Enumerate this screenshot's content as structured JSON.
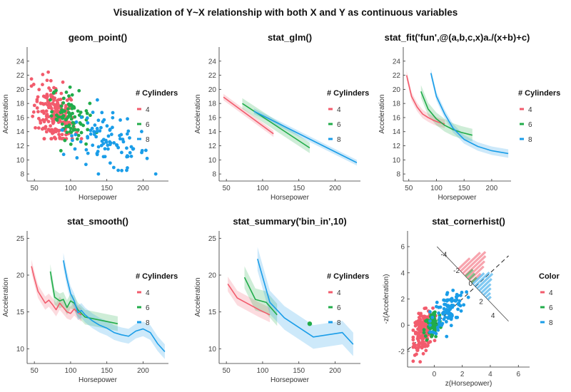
{
  "figure": {
    "title": "Visualization of Y~X relationship with both X and Y as continuous variables"
  },
  "colors": {
    "g4": "#f25b6c",
    "g6": "#21ac4a",
    "g8": "#1a9de8",
    "axis": "#333333",
    "tick": "#444444"
  },
  "chart_data": [
    {
      "id": "p1",
      "type": "scatter",
      "title": "geom_point()",
      "xlabel": "Horsepower",
      "ylabel": "Acceleration",
      "xticks": [
        50,
        100,
        150,
        200
      ],
      "yticks": [
        8,
        10,
        12,
        14,
        16,
        18,
        20,
        22,
        24
      ],
      "xlim": [
        40,
        235
      ],
      "ylim": [
        7,
        26
      ],
      "legend": {
        "title": "# Cylinders",
        "entries": [
          "4",
          "6",
          "8"
        ],
        "position": "right"
      },
      "clusters": [
        {
          "group": "4",
          "x_range": [
            46,
            115
          ],
          "y_range": [
            13,
            24.8
          ],
          "center": [
            78,
            16.5
          ],
          "spread": [
            14,
            2.2
          ],
          "count": 200
        },
        {
          "group": "6",
          "x_range": [
            72,
            165
          ],
          "y_range": [
            11.3,
            21
          ],
          "center": [
            100,
            16.2
          ],
          "spread": [
            13,
            1.8
          ],
          "count": 85
        },
        {
          "group": "8",
          "x_range": [
            88,
            230
          ],
          "y_range": [
            8,
            18.5
          ],
          "center": [
            150,
            12.5
          ],
          "spread": [
            30,
            1.9
          ],
          "count": 100
        }
      ]
    },
    {
      "id": "p2",
      "type": "line",
      "title": "stat_glm()",
      "xlabel": "Horsepower",
      "ylabel": "Acceleration",
      "xticks": [
        50,
        100,
        150,
        200
      ],
      "yticks": [
        8,
        10,
        12,
        14,
        16,
        18,
        20,
        22,
        24
      ],
      "xlim": [
        40,
        235
      ],
      "ylim": [
        7,
        26
      ],
      "legend": {
        "title": "# Cylinders",
        "entries": [
          "4",
          "6",
          "8"
        ],
        "position": "right"
      },
      "series": [
        {
          "name": "4",
          "x": [
            46,
            115
          ],
          "y": [
            18.9,
            13.7
          ],
          "band": 0.45
        },
        {
          "name": "6",
          "x": [
            72,
            165
          ],
          "y": [
            18.0,
            11.7
          ],
          "band": 0.75
        },
        {
          "name": "8",
          "x": [
            88,
            230
          ],
          "y": [
            16.9,
            9.6
          ],
          "band": 0.4
        }
      ]
    },
    {
      "id": "p3",
      "type": "line",
      "title": "stat_fit('fun',@(a,b,c,x)a./(x+b)+c)",
      "xlabel": "Horsepower",
      "ylabel": "Acceleration",
      "xticks": [
        50,
        100,
        150,
        200
      ],
      "yticks": [
        8,
        10,
        12,
        14,
        16,
        18,
        20,
        22,
        24
      ],
      "xlim": [
        40,
        235
      ],
      "ylim": [
        7,
        26
      ],
      "legend": {
        "title": "# Cylinders",
        "entries": [
          "4",
          "6",
          "8"
        ],
        "position": "right"
      },
      "series": [
        {
          "name": "4",
          "x": [
            46,
            55,
            65,
            75,
            85,
            95,
            105,
            115
          ],
          "y": [
            22.0,
            19.0,
            17.5,
            16.5,
            16.0,
            15.6,
            15.3,
            15.1
          ],
          "band": 0.6
        },
        {
          "name": "6",
          "x": [
            72,
            85,
            100,
            115,
            130,
            145,
            165
          ],
          "y": [
            19.7,
            17.2,
            15.8,
            14.9,
            14.3,
            13.9,
            13.5
          ],
          "band": 0.9
        },
        {
          "name": "8",
          "x": [
            90,
            100,
            115,
            130,
            150,
            175,
            200,
            230
          ],
          "y": [
            22.3,
            19.0,
            16.5,
            14.5,
            12.9,
            11.9,
            11.3,
            10.9
          ],
          "band": 0.6
        }
      ]
    },
    {
      "id": "p4",
      "type": "line",
      "title": "stat_smooth()",
      "xlabel": "Horsepower",
      "ylabel": "Acceleration",
      "xticks": [
        50,
        100,
        150,
        200
      ],
      "yticks": [
        10,
        15,
        20,
        25
      ],
      "xlim": [
        40,
        235
      ],
      "ylim": [
        8,
        26
      ],
      "legend": {
        "title": "# Cylinders",
        "entries": [
          "4",
          "6",
          "8"
        ],
        "position": "right"
      },
      "series": [
        {
          "name": "4",
          "x": [
            46,
            50,
            55,
            60,
            65,
            70,
            75,
            80,
            85,
            90,
            95,
            100,
            105,
            110,
            115
          ],
          "y": [
            21.2,
            19.6,
            17.8,
            17.0,
            16.2,
            16.6,
            16.0,
            15.3,
            16.2,
            15.6,
            15.0,
            14.8,
            15.4,
            14.9,
            14.6
          ],
          "band": 0.9
        },
        {
          "name": "6",
          "x": [
            72,
            78,
            85,
            90,
            95,
            100,
            105,
            110,
            120,
            130,
            145,
            165
          ],
          "y": [
            20.5,
            17.0,
            16.5,
            16.7,
            15.6,
            16.5,
            16.2,
            15.3,
            14.3,
            14.1,
            13.8,
            13.4
          ],
          "band": 1.0
        },
        {
          "name": "8",
          "x": [
            90,
            95,
            100,
            105,
            110,
            115,
            120,
            130,
            140,
            150,
            160,
            170,
            180,
            190,
            200,
            210,
            220,
            230
          ],
          "y": [
            22.0,
            19.5,
            17.5,
            16.5,
            14.9,
            15.2,
            14.6,
            13.8,
            13.2,
            12.8,
            12.2,
            11.9,
            11.7,
            12.4,
            12.7,
            12.2,
            10.7,
            9.6
          ],
          "band": 1.0
        }
      ]
    },
    {
      "id": "p5",
      "type": "line",
      "title": "stat_summary('bin_in',10)",
      "xlabel": "Horsepower",
      "ylabel": "Acceleration",
      "xticks": [
        50,
        100,
        150,
        200
      ],
      "yticks": [
        10,
        15,
        20,
        25
      ],
      "xlim": [
        40,
        235
      ],
      "ylim": [
        8,
        26
      ],
      "legend": {
        "title": "# Cylinders",
        "entries": [
          "4",
          "6",
          "8"
        ],
        "position": "right"
      },
      "series": [
        {
          "name": "4",
          "x": [
            52,
            65,
            80,
            95,
            110
          ],
          "y": [
            18.8,
            16.9,
            16.1,
            15.3,
            14.6
          ],
          "band": 1.0
        },
        {
          "name": "6",
          "x": [
            75,
            90,
            105,
            120
          ],
          "y": [
            19.7,
            16.7,
            16.3,
            14.6
          ],
          "band": 1.5
        },
        {
          "name": "8",
          "x": [
            93,
            110,
            130,
            170,
            210,
            225
          ],
          "y": [
            22.2,
            16.3,
            14.2,
            11.6,
            12.2,
            10.6
          ],
          "band": 1.6
        }
      ],
      "points": [
        {
          "name": "6",
          "x": 165,
          "y": 13.4
        }
      ]
    },
    {
      "id": "p6",
      "type": "scatter",
      "title": "stat_cornerhist()",
      "xlabel": "z(Horsepower)",
      "ylabel": "-z(Acceleration)",
      "xticks": [
        0,
        2,
        4,
        6
      ],
      "yticks": [
        -2,
        0,
        2,
        4,
        6
      ],
      "xlim": [
        -1.9,
        6.8
      ],
      "ylim": [
        -3.2,
        7.2
      ],
      "legend": {
        "title": "Color",
        "entries": [
          "4",
          "6",
          "8"
        ],
        "position": "right"
      },
      "diagonal_ticks": [
        "-4",
        "-2",
        "0",
        "2",
        "4"
      ],
      "clusters": [
        {
          "group": "4",
          "x_range": [
            -1.5,
            0.1
          ],
          "y_range": [
            -2.8,
            1.3
          ],
          "center": [
            -0.8,
            -0.5
          ],
          "spread": [
            0.35,
            0.7
          ],
          "count": 190
        },
        {
          "group": "6",
          "x_range": [
            -1.0,
            1.2
          ],
          "y_range": [
            -2.0,
            1.5
          ],
          "center": [
            -0.1,
            0.0
          ],
          "spread": [
            0.3,
            0.55
          ],
          "count": 80
        },
        {
          "group": "8",
          "x_range": [
            -0.3,
            3.0
          ],
          "y_range": [
            -1.0,
            3.2
          ],
          "center": [
            1.0,
            1.2
          ],
          "spread": [
            0.6,
            0.7
          ],
          "count": 95
        }
      ]
    }
  ]
}
